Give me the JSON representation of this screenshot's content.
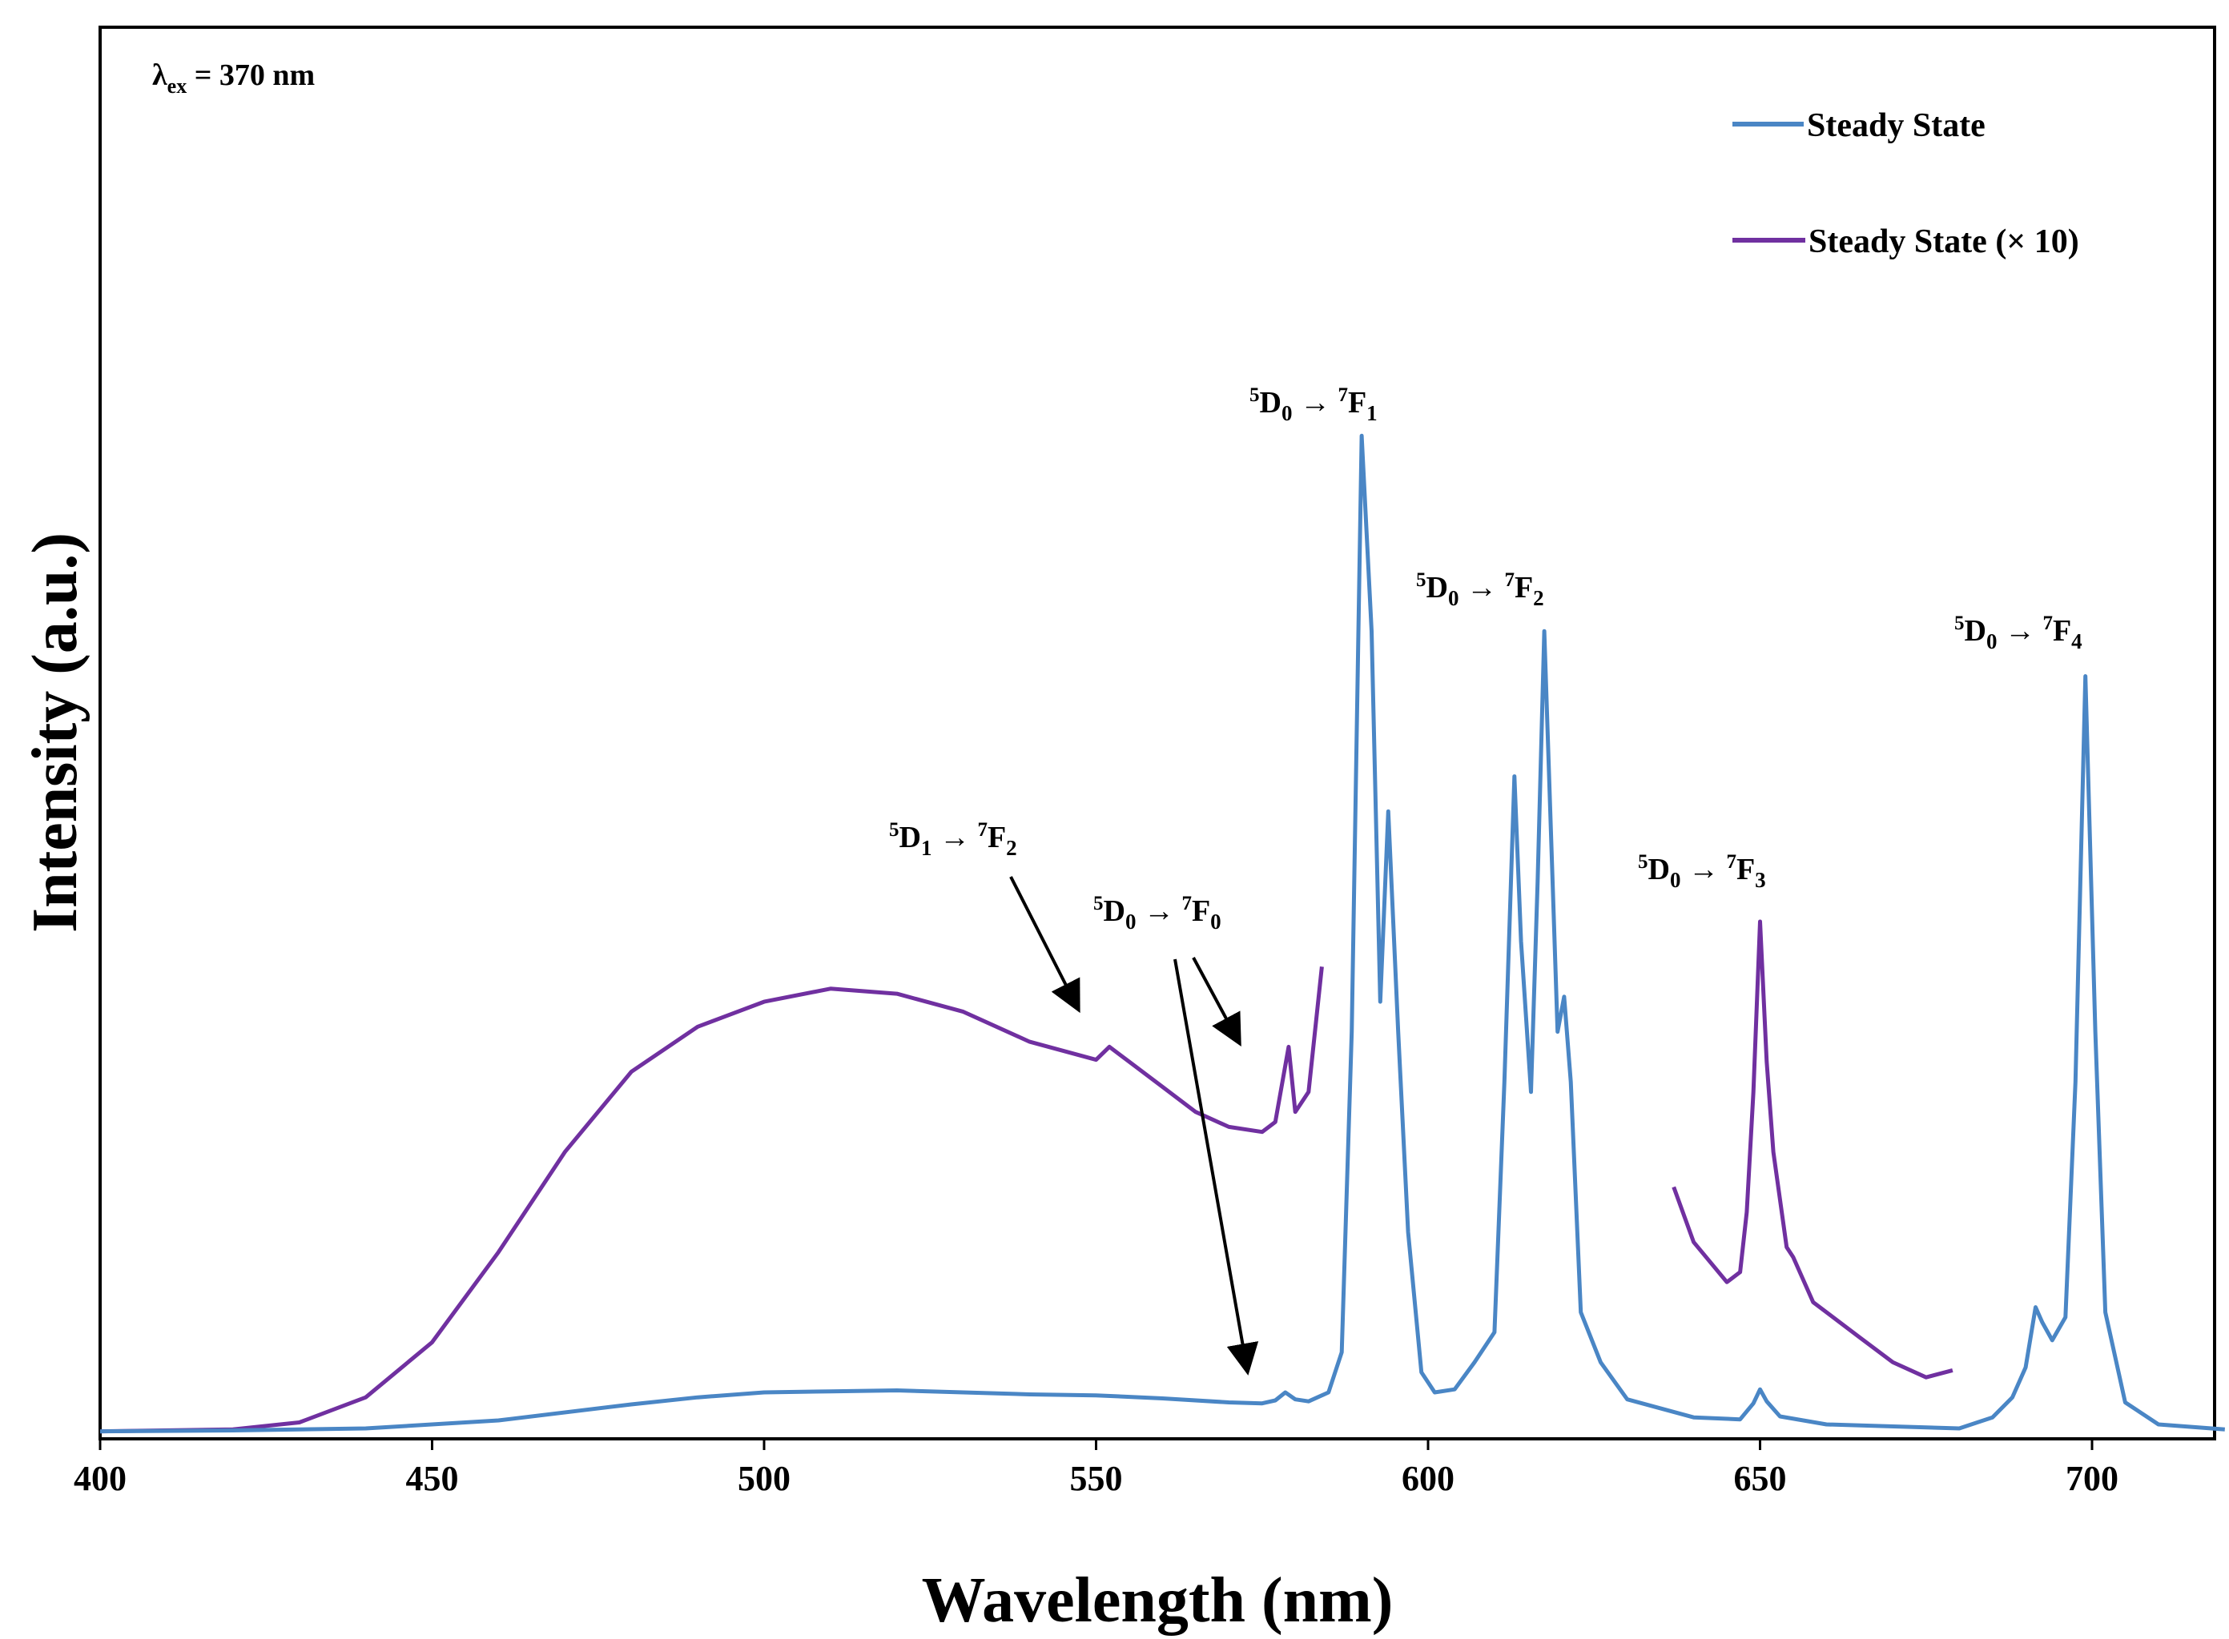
{
  "chart_data": {
    "type": "line",
    "title": "",
    "xlabel": "Wavelength (nm)",
    "ylabel": "Intensity (a.u.)",
    "xlim": [
      400,
      725
    ],
    "ylim": [
      0,
      100
    ],
    "xticks": [
      400,
      450,
      500,
      550,
      600,
      650,
      700
    ],
    "y_ticks_shown": false,
    "excitation": {
      "lambda": "λ",
      "sub": "ex",
      "text": " = 370 nm"
    },
    "legend_position": "top-right",
    "series": [
      {
        "name": "Steady State",
        "color": "#4a86c5",
        "points": [
          [
            400,
            0.1
          ],
          [
            420,
            0.2
          ],
          [
            440,
            0.4
          ],
          [
            460,
            1.2
          ],
          [
            480,
            2.8
          ],
          [
            490,
            3.5
          ],
          [
            500,
            4.0
          ],
          [
            510,
            4.1
          ],
          [
            520,
            4.2
          ],
          [
            530,
            4.0
          ],
          [
            540,
            3.8
          ],
          [
            550,
            3.7
          ],
          [
            560,
            3.4
          ],
          [
            570,
            3.0
          ],
          [
            575,
            2.9
          ],
          [
            577,
            3.2
          ],
          [
            578.5,
            4.0
          ],
          [
            580,
            3.3
          ],
          [
            582,
            3.1
          ],
          [
            585,
            4.0
          ],
          [
            587,
            8.0
          ],
          [
            588.5,
            40.0
          ],
          [
            590,
            99.5
          ],
          [
            591.5,
            80.0
          ],
          [
            592.8,
            43.0
          ],
          [
            594,
            62.0
          ],
          [
            595.5,
            40.0
          ],
          [
            597,
            20.0
          ],
          [
            599,
            6.0
          ],
          [
            601,
            4.0
          ],
          [
            604,
            4.3
          ],
          [
            607,
            7.0
          ],
          [
            610,
            10.0
          ],
          [
            611.5,
            35.0
          ],
          [
            613,
            65.5
          ],
          [
            614,
            49.0
          ],
          [
            615.5,
            34.0
          ],
          [
            616.5,
            55.0
          ],
          [
            617.5,
            80.0
          ],
          [
            618.5,
            60.0
          ],
          [
            619.5,
            40.0
          ],
          [
            620.5,
            43.5
          ],
          [
            621.5,
            35.0
          ],
          [
            623,
            12.0
          ],
          [
            626,
            7.0
          ],
          [
            630,
            3.3
          ],
          [
            640,
            1.5
          ],
          [
            647,
            1.3
          ],
          [
            649,
            2.9
          ],
          [
            650,
            4.3
          ],
          [
            651,
            3.1
          ],
          [
            653,
            1.6
          ],
          [
            660,
            0.8
          ],
          [
            680,
            0.4
          ],
          [
            685,
            1.5
          ],
          [
            688,
            3.5
          ],
          [
            690,
            6.5
          ],
          [
            691.5,
            12.5
          ],
          [
            692.5,
            11.0
          ],
          [
            694,
            9.2
          ],
          [
            696,
            11.5
          ],
          [
            697.5,
            35.0
          ],
          [
            699,
            75.5
          ],
          [
            700.5,
            40.0
          ],
          [
            702,
            12.0
          ],
          [
            705,
            3.0
          ],
          [
            710,
            0.8
          ],
          [
            720,
            0.3
          ]
        ]
      },
      {
        "name": "Steady State (× 10)",
        "color": "#7030a0",
        "segments": [
          [
            [
              400,
              0.1
            ],
            [
              420,
              0.3
            ],
            [
              430,
              1.0
            ],
            [
              440,
              3.5
            ],
            [
              450,
              9.0
            ],
            [
              460,
              18.0
            ],
            [
              470,
              28.0
            ],
            [
              480,
              36.0
            ],
            [
              490,
              40.5
            ],
            [
              500,
              43.0
            ],
            [
              510,
              44.3
            ],
            [
              520,
              43.8
            ],
            [
              530,
              42.0
            ],
            [
              540,
              39.0
            ],
            [
              550,
              37.2
            ],
            [
              552,
              38.5
            ],
            [
              555,
              37.0
            ],
            [
              560,
              34.5
            ],
            [
              565,
              32.0
            ],
            [
              570,
              30.5
            ],
            [
              575,
              30.0
            ],
            [
              577,
              31.0
            ],
            [
              579,
              38.5
            ],
            [
              580,
              32.0
            ],
            [
              582,
              34.0
            ],
            [
              584,
              46.5
            ]
          ],
          [
            [
              637,
              24.5
            ],
            [
              640,
              19.0
            ],
            [
              645,
              15.0
            ],
            [
              647,
              16.0
            ],
            [
              648,
              22.0
            ],
            [
              649,
              34.0
            ],
            [
              650,
              51.0
            ],
            [
              651,
              37.0
            ],
            [
              652,
              28.0
            ],
            [
              654,
              18.5
            ],
            [
              655,
              17.5
            ],
            [
              658,
              13.0
            ],
            [
              665,
              9.5
            ],
            [
              670,
              7.0
            ],
            [
              675,
              5.5
            ],
            [
              679,
              6.2
            ]
          ]
        ]
      }
    ],
    "annotations": [
      {
        "level1": "5",
        "term1": "D",
        "sub1": "0",
        "level2": "7",
        "term2": "F",
        "sub2": "1"
      },
      {
        "level1": "5",
        "term1": "D",
        "sub1": "0",
        "level2": "7",
        "term2": "F",
        "sub2": "2"
      },
      {
        "level1": "5",
        "term1": "D",
        "sub1": "0",
        "level2": "7",
        "term2": "F",
        "sub2": "4"
      },
      {
        "level1": "5",
        "term1": "D",
        "sub1": "1",
        "level2": "7",
        "term2": "F",
        "sub2": "2"
      },
      {
        "level1": "5",
        "term1": "D",
        "sub1": "0",
        "level2": "7",
        "term2": "F",
        "sub2": "0"
      },
      {
        "level1": "5",
        "term1": "D",
        "sub1": "0",
        "level2": "7",
        "term2": "F",
        "sub2": "3"
      }
    ],
    "arrow_symbol": "→"
  }
}
